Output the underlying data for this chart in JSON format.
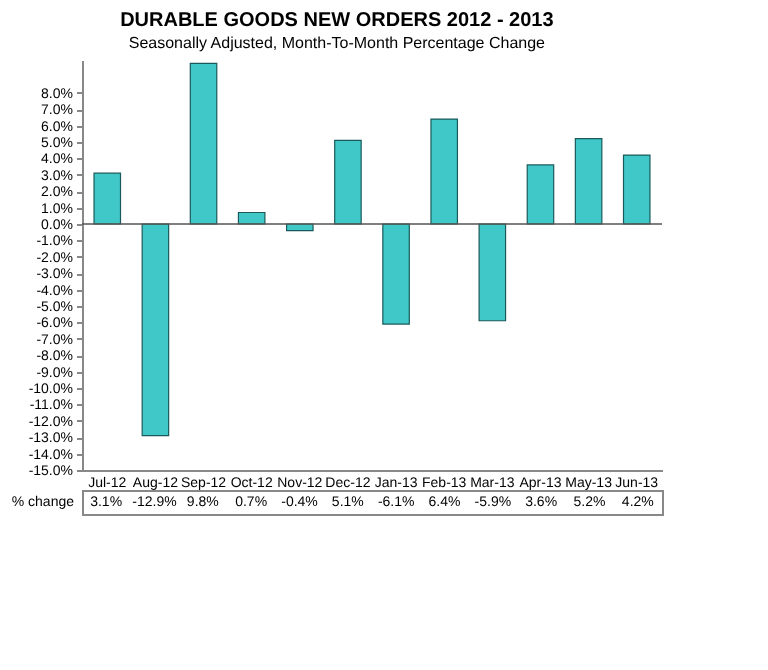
{
  "chart_data": {
    "type": "bar",
    "title": "DURABLE GOODS NEW ORDERS 2012 - 2013",
    "subtitle": "Seasonally Adjusted,  Month-To-Month Percentage Change",
    "categories": [
      "Jul-12",
      "Aug-12",
      "Sep-12",
      "Oct-12",
      "Nov-12",
      "Dec-12",
      "Jan-13",
      "Feb-13",
      "Mar-13",
      "Apr-13",
      "May-13",
      "Jun-13"
    ],
    "values": [
      3.1,
      -12.9,
      9.8,
      0.7,
      -0.4,
      5.1,
      -6.1,
      6.4,
      -5.9,
      3.6,
      5.2,
      4.2
    ],
    "value_labels": [
      "3.1%",
      "-12.9%",
      "9.8%",
      "0.7%",
      "-0.4%",
      "5.1%",
      "-6.1%",
      "6.4%",
      "-5.9%",
      "3.6%",
      "5.2%",
      "4.2%"
    ],
    "color": "#40c8c8",
    "ylim": [
      -15,
      10
    ],
    "yticks": [
      {
        "value": 8,
        "label": "8.0%"
      },
      {
        "value": 7,
        "label": "7.0%"
      },
      {
        "value": 6,
        "label": "6.0%"
      },
      {
        "value": 5,
        "label": "5.0%"
      },
      {
        "value": 4,
        "label": "4.0%"
      },
      {
        "value": 3,
        "label": "3.0%"
      },
      {
        "value": 2,
        "label": "2.0%"
      },
      {
        "value": 1,
        "label": "1.0%"
      },
      {
        "value": 0,
        "label": "0.0%"
      },
      {
        "value": -1,
        "label": "-1.0%"
      },
      {
        "value": -2,
        "label": "-2.0%"
      },
      {
        "value": -3,
        "label": "-3.0%"
      },
      {
        "value": -4,
        "label": "-4.0%"
      },
      {
        "value": -5,
        "label": "-5.0%"
      },
      {
        "value": -6,
        "label": "-6.0%"
      },
      {
        "value": -7,
        "label": "-7.0%"
      },
      {
        "value": -8,
        "label": "-8.0%"
      },
      {
        "value": -9,
        "label": "-9.0%"
      },
      {
        "value": -10,
        "label": "-10.0%"
      },
      {
        "value": -11,
        "label": "-11.0%"
      },
      {
        "value": -12,
        "label": "-12.0%"
      },
      {
        "value": -13,
        "label": "-13.0%"
      },
      {
        "value": -14,
        "label": "-14.0%"
      },
      {
        "value": -15,
        "label": "-15.0%"
      }
    ],
    "annotations": [
      "% change"
    ],
    "ref_lines": [
      {
        "axis": "y",
        "value": 0,
        "color": "#555555"
      }
    ],
    "grid": false
  }
}
